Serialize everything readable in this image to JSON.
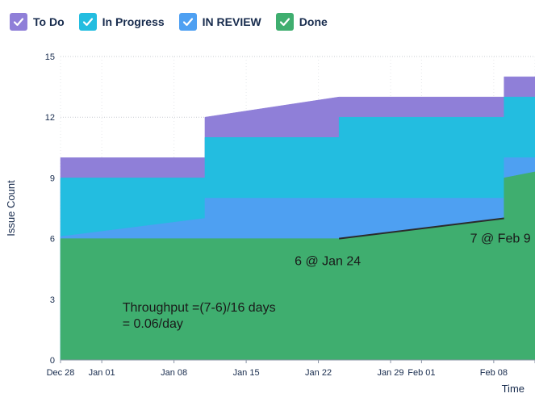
{
  "legend": [
    {
      "label": "To Do",
      "color": "#8f7fd8",
      "checked": true
    },
    {
      "label": "In Progress",
      "color": "#23bde0",
      "checked": true
    },
    {
      "label": "IN REVIEW",
      "color": "#4ea0f2",
      "checked": true
    },
    {
      "label": "Done",
      "color": "#3fae6f",
      "checked": true
    }
  ],
  "chart_data": {
    "type": "area",
    "stacked": true,
    "xlabel": "Time",
    "ylabel": "Issue Count",
    "ylim": [
      0,
      15
    ],
    "yticks": [
      0,
      3,
      6,
      9,
      12,
      15
    ],
    "xlim": [
      "2023-12-28",
      "2024-02-12"
    ],
    "xticks": [
      {
        "date": "2023-12-28",
        "label": "Dec 28"
      },
      {
        "date": "2024-01-01",
        "label": "Jan 01"
      },
      {
        "date": "2024-01-08",
        "label": "Jan 08"
      },
      {
        "date": "2024-01-15",
        "label": "Jan 15"
      },
      {
        "date": "2024-01-22",
        "label": "Jan 22"
      },
      {
        "date": "2024-01-29",
        "label": "Jan 29"
      },
      {
        "date": "2024-02-01",
        "label": "Feb 01"
      },
      {
        "date": "2024-02-08",
        "label": "Feb 08"
      },
      {
        "date": "2024-02-12",
        "label": ""
      }
    ],
    "grid": true,
    "series": [
      {
        "name": "Done",
        "color": "#3fae6f",
        "points": [
          [
            "2023-12-28",
            6
          ],
          [
            "2024-01-24",
            6
          ],
          [
            "2024-02-09",
            7
          ],
          [
            "2024-02-09",
            9
          ],
          [
            "2024-02-12",
            9.3
          ]
        ]
      },
      {
        "name": "IN REVIEW",
        "color": "#4ea0f2",
        "points": [
          [
            "2023-12-28",
            6.1
          ],
          [
            "2024-01-11",
            7
          ],
          [
            "2024-01-11",
            8
          ],
          [
            "2024-02-09",
            8
          ],
          [
            "2024-02-09",
            10
          ],
          [
            "2024-02-12",
            10
          ]
        ]
      },
      {
        "name": "In Progress",
        "color": "#23bde0",
        "points": [
          [
            "2023-12-28",
            9
          ],
          [
            "2024-01-11",
            9
          ],
          [
            "2024-01-11",
            11
          ],
          [
            "2024-01-24",
            11
          ],
          [
            "2024-01-24",
            12
          ],
          [
            "2024-02-09",
            12
          ],
          [
            "2024-02-09",
            13
          ],
          [
            "2024-02-12",
            13
          ]
        ]
      },
      {
        "name": "To Do",
        "color": "#8f7fd8",
        "points": [
          [
            "2023-12-28",
            10
          ],
          [
            "2024-01-11",
            10
          ],
          [
            "2024-01-11",
            12
          ],
          [
            "2024-01-24",
            13
          ],
          [
            "2024-02-09",
            13
          ],
          [
            "2024-02-09",
            14
          ],
          [
            "2024-02-12",
            14
          ]
        ]
      }
    ],
    "annotations": [
      {
        "text": "6 @ Jan 24",
        "date": "2024-01-24",
        "value": 6
      },
      {
        "text": "7 @ Feb 9",
        "date": "2024-02-09",
        "value": 7
      },
      {
        "text": "Throughput =(7-6)/16 days",
        "date": "2024-01-03",
        "value": 2.4
      },
      {
        "text": "= 0.06/day",
        "date": "2024-01-03",
        "value": 1.6
      }
    ],
    "trend_line": {
      "from": [
        "2024-01-24",
        6
      ],
      "to": [
        "2024-02-09",
        7
      ]
    }
  }
}
